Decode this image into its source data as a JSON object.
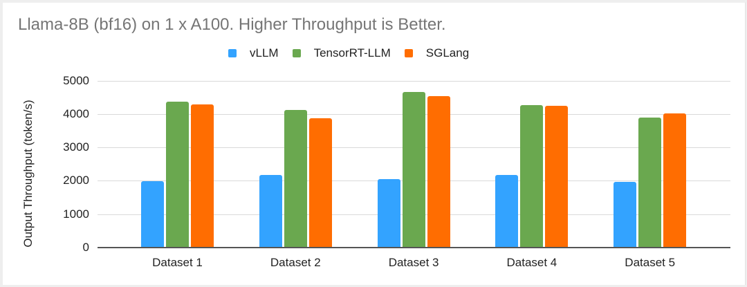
{
  "chart_data": {
    "type": "bar",
    "title": "Llama-8B (bf16) on 1 x A100. Higher Throughput is Better.",
    "xlabel": "",
    "ylabel": "Output Throughput (token/s)",
    "ylim": [
      0,
      5000
    ],
    "yticks": [
      0,
      1000,
      2000,
      3000,
      4000,
      5000
    ],
    "grid": true,
    "legend_position": "top",
    "categories": [
      "Dataset 1",
      "Dataset 2",
      "Dataset 3",
      "Dataset 4",
      "Dataset 5"
    ],
    "series": [
      {
        "name": "vLLM",
        "color": "#33a3ff",
        "values": [
          1990,
          2180,
          2050,
          2180,
          1960
        ]
      },
      {
        "name": "TensorRT-LLM",
        "color": "#6aa84f",
        "values": [
          4380,
          4130,
          4660,
          4280,
          3900
        ]
      },
      {
        "name": "SGLang",
        "color": "#ff6d01",
        "values": [
          4290,
          3880,
          4540,
          4250,
          4030
        ]
      }
    ]
  }
}
